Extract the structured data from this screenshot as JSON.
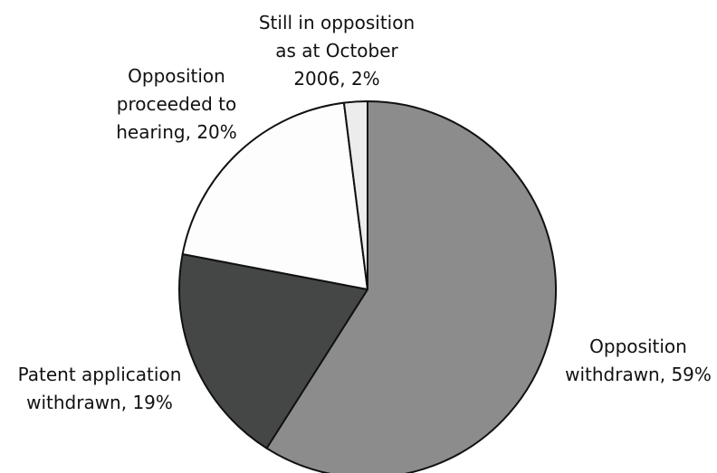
{
  "chart_data": {
    "type": "pie",
    "slices": [
      {
        "label": [
          "Opposition",
          "withdrawn, 59%"
        ],
        "value": 59,
        "color": "#8c8c8c"
      },
      {
        "label": [
          "Patent application",
          "withdrawn, 19%"
        ],
        "value": 19,
        "color": "#454747"
      },
      {
        "label": [
          "Opposition",
          "proceeded to",
          "hearing, 20%"
        ],
        "value": 20,
        "color": "#fdfdfd"
      },
      {
        "label": [
          "Still in opposition",
          "as at October",
          "2006, 2%"
        ],
        "value": 2,
        "color": "#ececec"
      }
    ],
    "start_angle_deg": 0,
    "direction": "clockwise",
    "legend": "none"
  }
}
